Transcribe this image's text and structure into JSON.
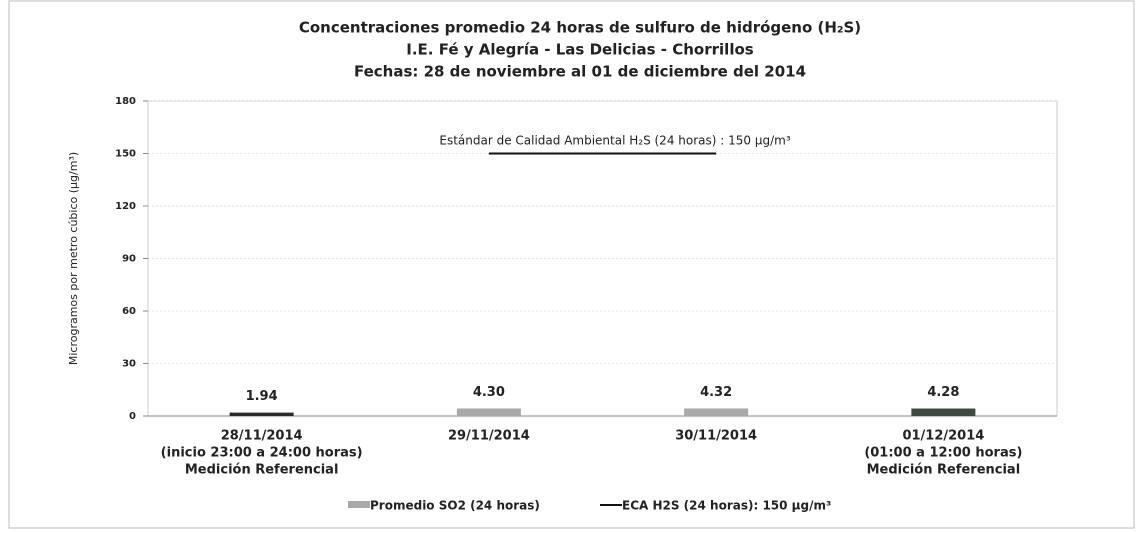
{
  "chart_data": {
    "type": "bar",
    "title": [
      "Concentraciones promedio 24 horas de sulfuro de hidrógeno (H₂S)",
      "I.E. Fé y Alegría - Las Delicias - Chorrillos",
      "Fechas: 28 de noviembre al 01 de diciembre del 2014"
    ],
    "y_label": "Microgramos por metro cúbico (µg/m³)",
    "annotation": "Estándar de Calidad Ambiental H₂S (24 horas) : 150 µg/m³",
    "categories": [
      [
        "28/11/2014",
        "(inicio 23:00 a 24:00 horas)",
        "Medición Referencial"
      ],
      [
        "29/11/2014"
      ],
      [
        "30/11/2014"
      ],
      [
        "01/12/2014",
        "(01:00 a 12:00 horas)",
        "Medición Referencial"
      ]
    ],
    "series": [
      {
        "name": "Promedio SO2 (24 horas)",
        "type": "bar",
        "color": "#a9a9a9",
        "colors": [
          "#2a2a2a",
          "#a9a9a9",
          "#a9a9a9",
          "#3e4a40"
        ],
        "values": [
          1.94,
          4.3,
          4.32,
          4.28
        ],
        "value_labels": [
          "1.94",
          "4.30",
          "4.32",
          "4.28"
        ]
      },
      {
        "name": "ECA H2S (24 horas): 150 µg/m³",
        "type": "line",
        "color": "#111111",
        "values": [
          null,
          150,
          150,
          null
        ]
      }
    ],
    "ylim": [
      0,
      180
    ],
    "yticks": [
      0,
      30,
      60,
      90,
      120,
      150,
      180
    ],
    "grid": true,
    "legend": "bottom"
  }
}
